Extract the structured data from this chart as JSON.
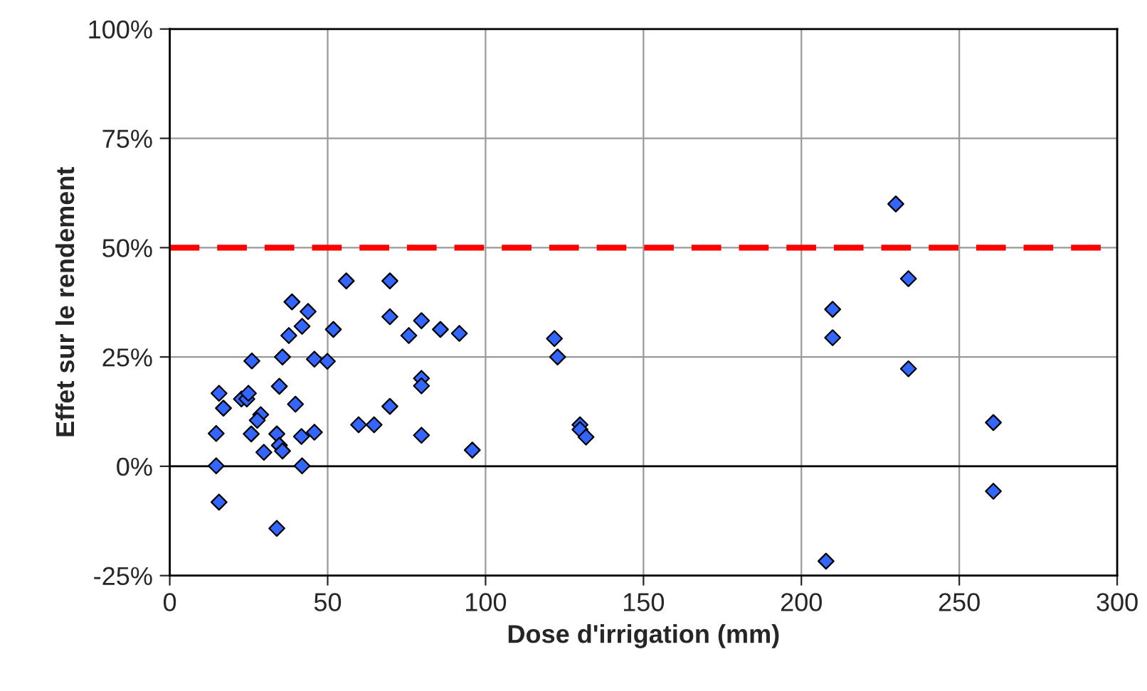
{
  "chart_data": {
    "type": "scatter",
    "xlabel": "Dose d'irrigation (mm)",
    "ylabel": "Effet sur le rendement",
    "series": [
      {
        "color": "#3366ff",
        "x": [
          14.7,
          15.6,
          17.0,
          14.7,
          15.6,
          26.0,
          22.7,
          24.4,
          24.9,
          28.8,
          27.7,
          25.8,
          29.8,
          33.9,
          34.7,
          33.9,
          34.7,
          35.7,
          35.7,
          37.7,
          38.7,
          39.8,
          41.9,
          43.8,
          41.7,
          41.9,
          45.8,
          45.8,
          49.9,
          51.8,
          55.9,
          59.8,
          64.7,
          69.7,
          69.7,
          69.7,
          75.7,
          79.7,
          79.7,
          79.7,
          79.7,
          85.7,
          91.7,
          95.8,
          121.8,
          122.8,
          129.9,
          129.9,
          131.8,
          229.9,
          233.9,
          209.9,
          209.9,
          233.9,
          260.8,
          260.8,
          207.8
        ],
        "values": [
          7.5,
          16.7,
          13.3,
          0.1,
          -8.2,
          24.1,
          15.4,
          15.4,
          16.7,
          11.8,
          10.5,
          7.4,
          3.2,
          7.4,
          18.3,
          -14.2,
          4.8,
          3.5,
          25.0,
          29.9,
          37.6,
          14.2,
          32.0,
          35.4,
          6.8,
          0.1,
          24.5,
          7.8,
          24.0,
          31.3,
          42.4,
          9.5,
          9.5,
          42.4,
          34.2,
          13.7,
          29.9,
          33.3,
          20.1,
          18.4,
          7.1,
          31.3,
          30.4,
          3.7,
          29.2,
          25.0,
          9.5,
          8.4,
          6.7,
          60.0,
          42.9,
          35.9,
          29.4,
          22.3,
          10.0,
          -5.7,
          -21.7
        ]
      }
    ],
    "marker": "diamond",
    "xlim": [
      0,
      300
    ],
    "xticks": [
      0,
      50,
      100,
      150,
      200,
      250,
      300
    ],
    "ylim": [
      -25,
      100
    ],
    "yticks": [
      {
        "value": -25,
        "label": "-25%"
      },
      {
        "value": 0,
        "label": "0%"
      },
      {
        "value": 25,
        "label": "25%"
      },
      {
        "value": 50,
        "label": "50%"
      },
      {
        "value": 75,
        "label": "75%"
      },
      {
        "value": 100,
        "label": "100%"
      }
    ],
    "ref_lines": [
      {
        "axis": "y",
        "value": 50,
        "color": "#ff0000",
        "line_style": "dashed"
      },
      {
        "axis": "y",
        "value": 0,
        "color": "#000000",
        "line_style": "solid"
      }
    ],
    "grid": true,
    "legend": false
  }
}
